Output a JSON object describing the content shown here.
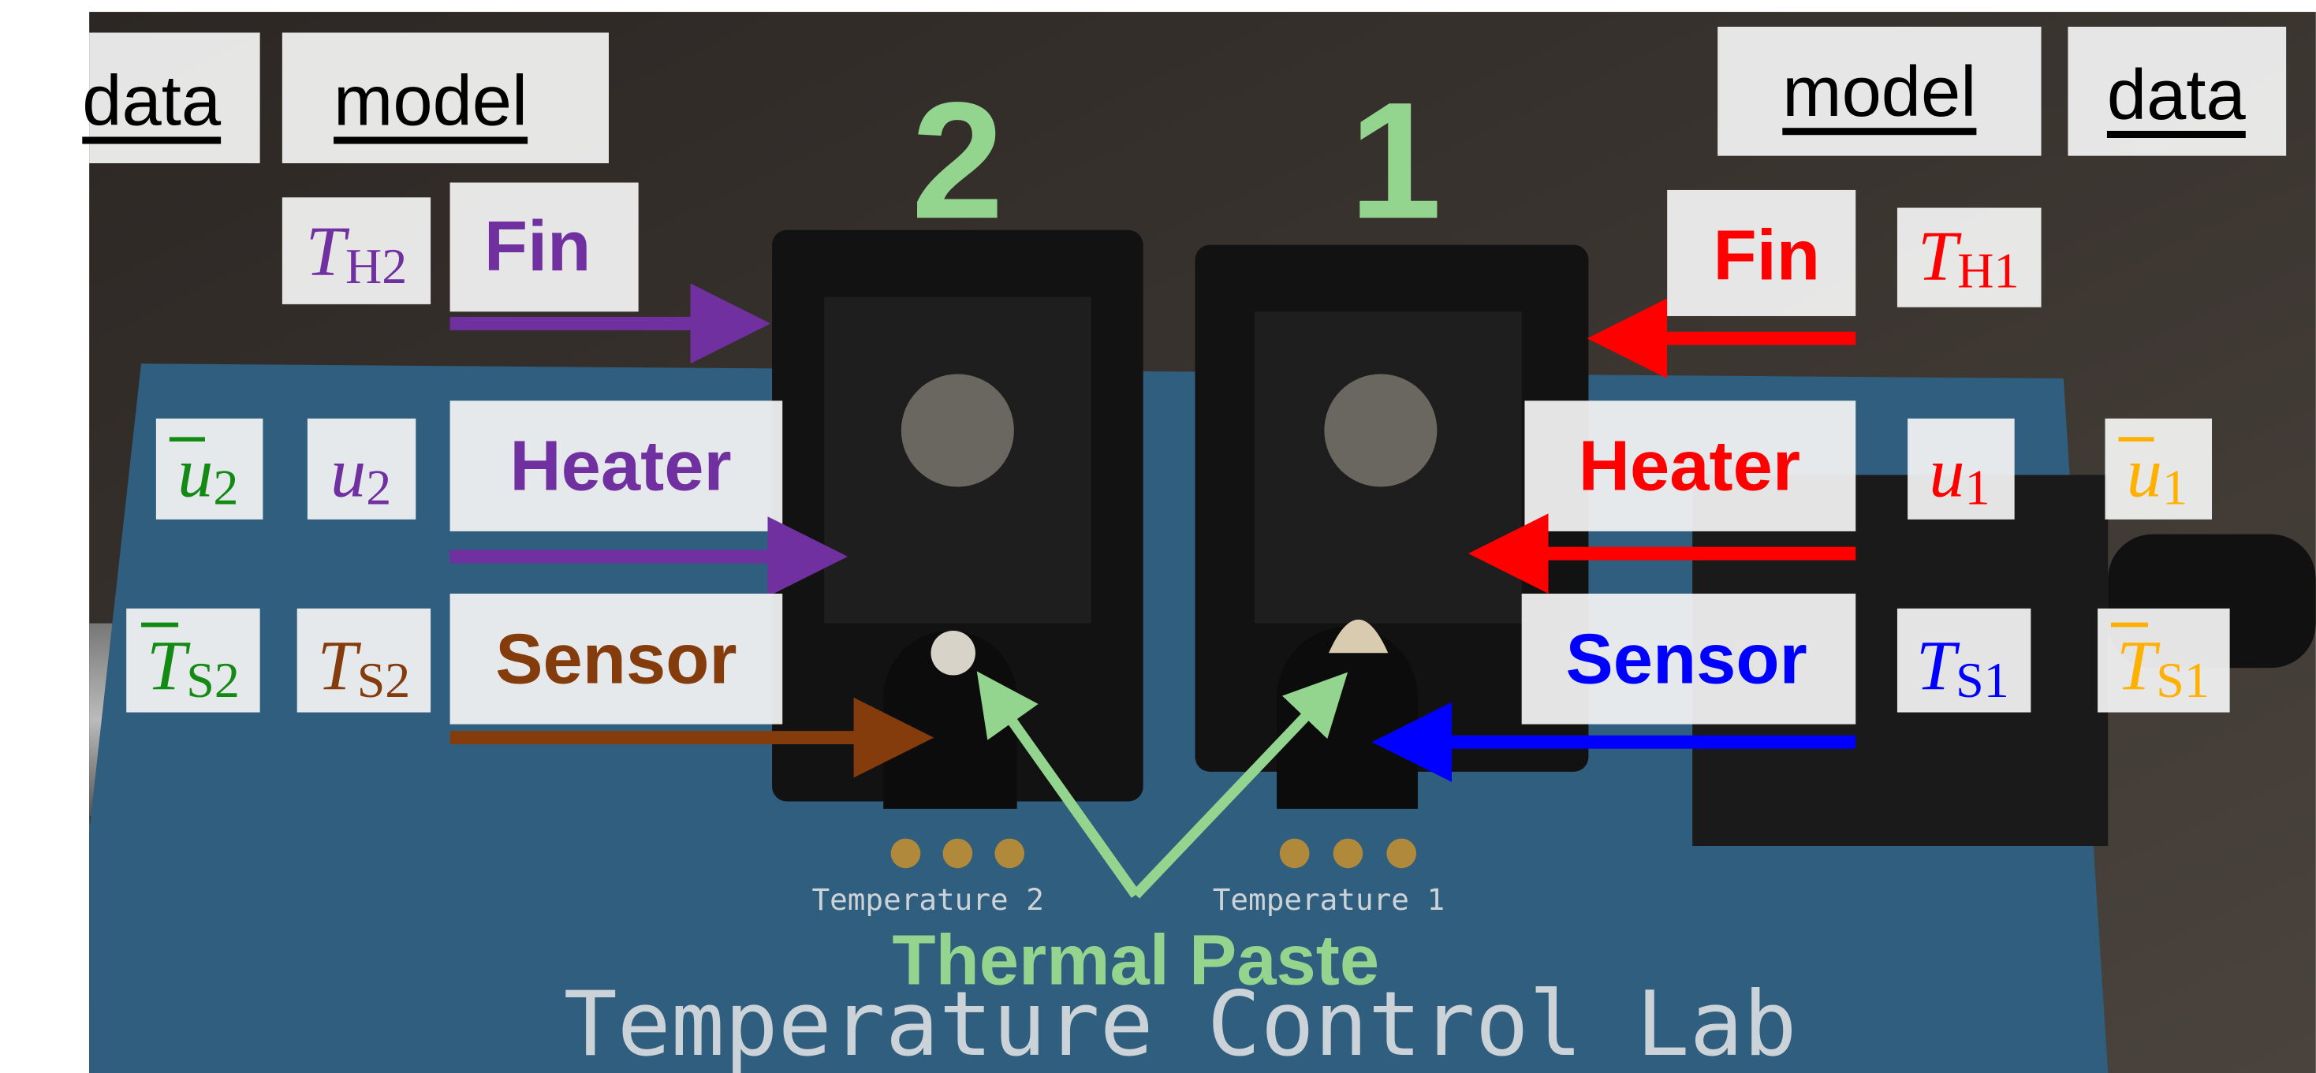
{
  "column_labels": {
    "left_data": "data",
    "left_model": "model",
    "right_model": "model",
    "right_data": "data"
  },
  "heater_numbers": [
    "2",
    "1"
  ],
  "left_labels": {
    "fin": "Fin",
    "heater": "Heater",
    "sensor": "Sensor"
  },
  "right_labels": {
    "fin": "Fin",
    "heater": "Heater",
    "sensor": "Sensor"
  },
  "symbols": {
    "T_H2": {
      "symbol": "T",
      "subscript": "H2"
    },
    "u_bar_2": {
      "symbol": "u",
      "subscript": "2"
    },
    "u_2": {
      "symbol": "u",
      "subscript": "2"
    },
    "T_bar_S2": {
      "symbol": "T",
      "subscript": "S2"
    },
    "T_S2": {
      "symbol": "T",
      "subscript": "S2"
    },
    "T_H1": {
      "symbol": "T",
      "subscript": "H1"
    },
    "u_1": {
      "symbol": "u",
      "subscript": "1"
    },
    "u_bar_1": {
      "symbol": "u",
      "subscript": "1"
    },
    "T_S1": {
      "symbol": "T",
      "subscript": "S1"
    },
    "T_bar_S1": {
      "symbol": "T",
      "subscript": "S1"
    }
  },
  "thermal_paste": "Thermal Paste",
  "board_text": {
    "title": "Temperature Control Lab",
    "sensor_2": "Temperature 2",
    "sensor_1": "Temperature 1"
  }
}
